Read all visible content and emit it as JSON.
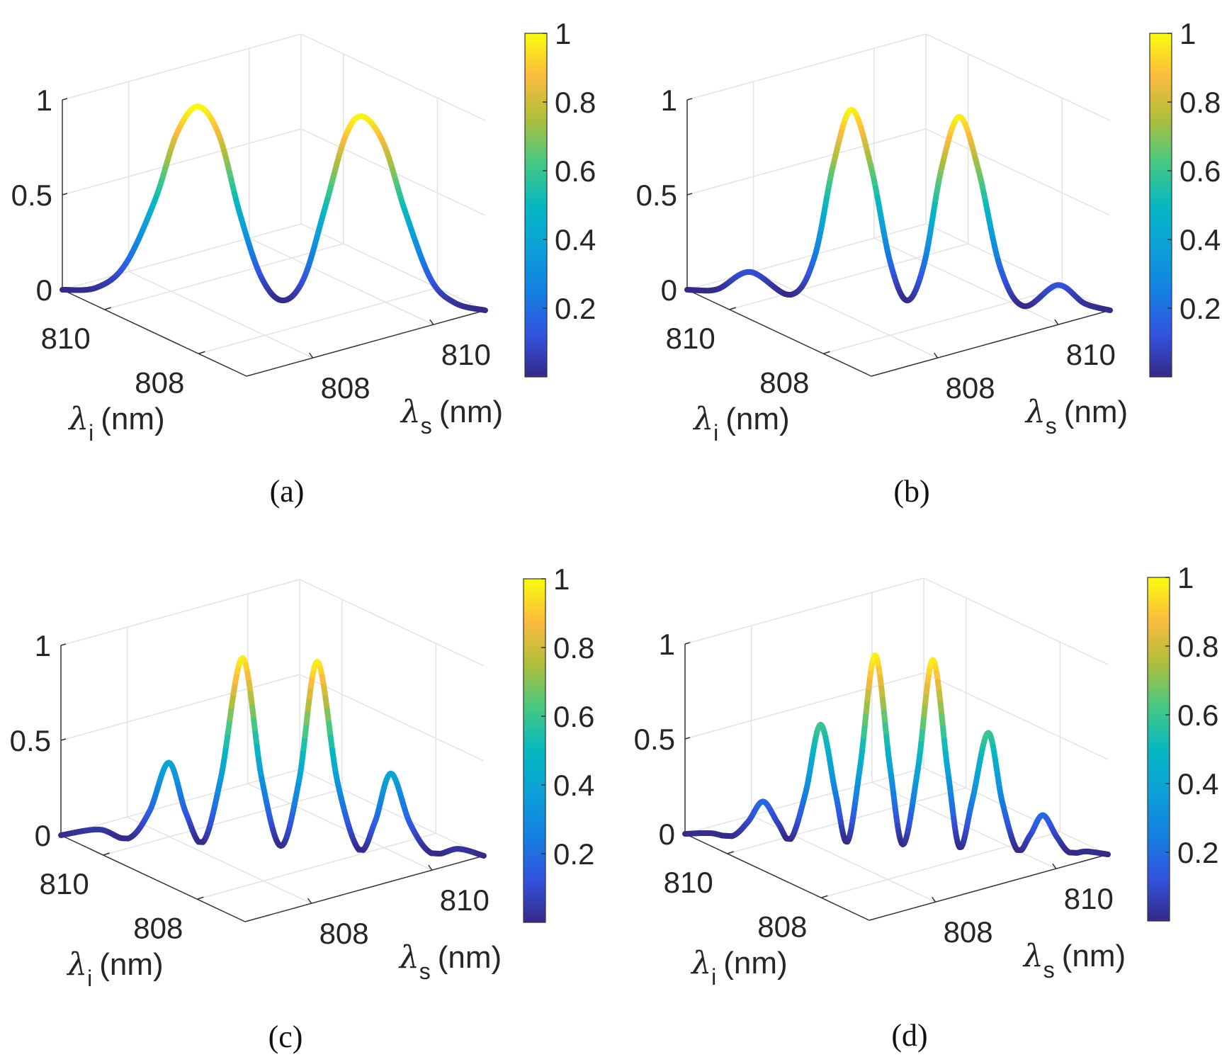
{
  "chart_data": [
    {
      "type": "line",
      "panel_label": "(a)",
      "xlabel": {
        "symbol": "λ",
        "sub": "s",
        "unit": "(nm)"
      },
      "ylabel": {
        "symbol": "λ",
        "sub": "i",
        "unit": "(nm)"
      },
      "xlim": [
        806.9,
        810.86
      ],
      "ylim": [
        806.98,
        810.9
      ],
      "zlim": [
        0,
        1
      ],
      "xticks": [
        "808",
        "810"
      ],
      "yticks": [
        "810",
        "808"
      ],
      "zticks": [
        "0",
        "0.5",
        "1"
      ],
      "colorbar": {
        "colormap": "parula",
        "ticks": [
          "0.2",
          "0.4",
          "0.6",
          "0.8",
          "1"
        ]
      },
      "grid": true,
      "series": [
        {
          "x": [
            806.9,
            807.22,
            807.49,
            807.77,
            807.97,
            808.17,
            808.37,
            808.56,
            808.76,
            808.96,
            809.16,
            809.36,
            809.55,
            809.71,
            809.91,
            810.11,
            810.35,
            810.58,
            810.86
          ],
          "z": [
            0,
            0.02,
            0.15,
            0.5,
            0.85,
            1.0,
            0.85,
            0.45,
            0.12,
            0,
            0.12,
            0.5,
            0.88,
            0.99,
            0.85,
            0.5,
            0.15,
            0.03,
            0
          ]
        }
      ]
    },
    {
      "type": "line",
      "panel_label": "(b)",
      "xlabel": {
        "symbol": "λ",
        "sub": "s",
        "unit": "(nm)"
      },
      "ylabel": {
        "symbol": "λ",
        "sub": "i",
        "unit": "(nm)"
      },
      "xlim": [
        806.9,
        810.86
      ],
      "ylim": [
        806.98,
        810.9
      ],
      "zlim": [
        0,
        1
      ],
      "xticks": [
        "808",
        "810"
      ],
      "yticks": [
        "810",
        "808"
      ],
      "zticks": [
        "0",
        "0.5",
        "1"
      ],
      "colorbar": {
        "colormap": "parula",
        "ticks": [
          "0.2",
          "0.4",
          "0.6",
          "0.8",
          "1"
        ]
      },
      "grid": true,
      "series": [
        {
          "x": [
            806.9,
            807.18,
            807.49,
            807.87,
            808.09,
            808.27,
            808.44,
            808.62,
            808.8,
            808.96,
            809.12,
            809.28,
            809.45,
            809.63,
            809.83,
            810.05,
            810.37,
            810.62,
            810.86
          ],
          "z": [
            0,
            0.01,
            0.11,
            0,
            0.2,
            0.7,
            0.99,
            0.7,
            0.2,
            0,
            0.2,
            0.7,
            0.98,
            0.7,
            0.2,
            0,
            0.12,
            0.03,
            0
          ]
        }
      ]
    },
    {
      "type": "line",
      "panel_label": "(c)",
      "xlabel": {
        "symbol": "λ",
        "sub": "s",
        "unit": "(nm)"
      },
      "ylabel": {
        "symbol": "λ",
        "sub": "i",
        "unit": "(nm)"
      },
      "xlim": [
        806.9,
        810.86
      ],
      "ylim": [
        806.98,
        810.9
      ],
      "zlim": [
        0,
        1
      ],
      "xticks": [
        "808",
        "810"
      ],
      "yticks": [
        "810",
        "808"
      ],
      "zticks": [
        "0",
        "0.5",
        "1"
      ],
      "colorbar": {
        "colormap": "parula",
        "ticks": [
          "0.2",
          "0.4",
          "0.6",
          "0.8",
          "1"
        ]
      },
      "grid": true,
      "series": [
        {
          "x": [
            806.9,
            807.26,
            807.53,
            807.73,
            807.91,
            808.07,
            808.23,
            808.4,
            808.6,
            808.78,
            808.96,
            809.13,
            809.3,
            809.49,
            809.69,
            809.84,
            809.99,
            810.17,
            810.37,
            810.62,
            810.86
          ],
          "z": [
            0,
            0.04,
            0,
            0.15,
            0.41,
            0.15,
            0,
            0.35,
            0.98,
            0.35,
            0,
            0.35,
            0.98,
            0.35,
            0,
            0.15,
            0.41,
            0.15,
            0,
            0.03,
            0
          ]
        }
      ]
    },
    {
      "type": "line",
      "panel_label": "(d)",
      "xlabel": {
        "symbol": "λ",
        "sub": "s",
        "unit": "(nm)"
      },
      "ylabel": {
        "symbol": "λ",
        "sub": "i",
        "unit": "(nm)"
      },
      "xlim": [
        806.9,
        810.86
      ],
      "ylim": [
        806.98,
        810.9
      ],
      "zlim": [
        0,
        1
      ],
      "xticks": [
        "808",
        "810"
      ],
      "yticks": [
        "810",
        "808"
      ],
      "zticks": [
        "0",
        "0.5",
        "1"
      ],
      "colorbar": {
        "colormap": "parula",
        "ticks": [
          "0.2",
          "0.4",
          "0.6",
          "0.8",
          "1"
        ]
      },
      "grid": true,
      "series": [
        {
          "x": [
            806.9,
            807.14,
            807.34,
            807.49,
            807.63,
            807.77,
            807.89,
            808.03,
            808.17,
            808.31,
            808.42,
            808.54,
            808.68,
            808.82,
            808.94,
            809.08,
            809.22,
            809.36,
            809.47,
            809.59,
            809.74,
            809.87,
            810.01,
            810.13,
            810.25,
            810.38,
            810.5,
            810.66,
            810.86
          ],
          "z": [
            0,
            0.01,
            0,
            0.08,
            0.19,
            0.08,
            0,
            0.25,
            0.61,
            0.25,
            0,
            0.4,
            0.99,
            0.4,
            0,
            0.4,
            0.98,
            0.4,
            0,
            0.25,
            0.61,
            0.25,
            0,
            0.08,
            0.19,
            0.08,
            0,
            0.01,
            0
          ]
        }
      ]
    }
  ]
}
